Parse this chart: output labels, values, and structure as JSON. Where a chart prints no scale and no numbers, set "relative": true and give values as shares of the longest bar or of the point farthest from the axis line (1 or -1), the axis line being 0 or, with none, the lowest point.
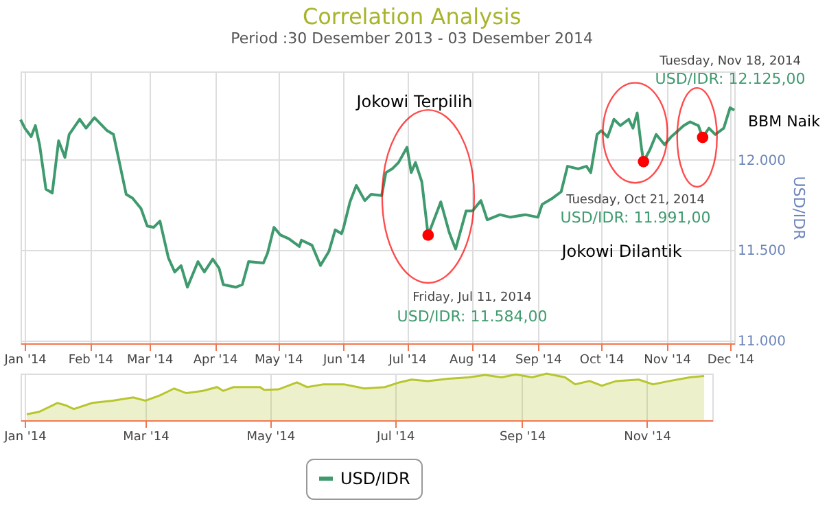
{
  "chart_data": [
    {
      "type": "line",
      "title": "Correlation Analysis",
      "subtitle": "Period :30 Desember 2013 - 03 Desember 2014",
      "ylabel": "USD/IDR",
      "x": [
        "2013-12-30",
        "2014-01-01",
        "2014-01-04",
        "2014-01-06",
        "2014-01-08",
        "2014-01-11",
        "2014-01-14",
        "2014-01-17",
        "2014-01-20",
        "2014-01-22",
        "2014-01-27",
        "2014-01-30",
        "2014-02-03",
        "2014-02-09",
        "2014-02-12",
        "2014-02-18",
        "2014-02-21",
        "2014-02-25",
        "2014-02-28",
        "2014-03-03",
        "2014-03-06",
        "2014-03-10",
        "2014-03-13",
        "2014-03-16",
        "2014-03-19",
        "2014-03-24",
        "2014-03-27",
        "2014-03-31",
        "2014-04-03",
        "2014-04-05",
        "2014-04-11",
        "2014-04-14",
        "2014-04-17",
        "2014-04-24",
        "2014-04-26",
        "2014-04-29",
        "2014-05-02",
        "2014-05-06",
        "2014-05-11",
        "2014-05-12",
        "2014-05-17",
        "2014-05-21",
        "2014-05-25",
        "2014-05-28",
        "2014-05-31",
        "2014-06-01",
        "2014-06-04",
        "2014-06-07",
        "2014-06-11",
        "2014-06-14",
        "2014-06-19",
        "2014-06-21",
        "2014-06-24",
        "2014-06-27",
        "2014-07-01",
        "2014-07-03",
        "2014-07-05",
        "2014-07-08",
        "2014-07-11",
        "2014-07-17",
        "2014-07-21",
        "2014-07-24",
        "2014-07-29",
        "2014-08-01",
        "2014-08-05",
        "2014-08-08",
        "2014-08-14",
        "2014-08-19",
        "2014-08-26",
        "2014-09-01",
        "2014-09-03",
        "2014-09-08",
        "2014-09-12",
        "2014-09-15",
        "2014-09-20",
        "2014-09-24",
        "2014-09-26",
        "2014-09-29",
        "2014-10-01",
        "2014-10-04",
        "2014-10-07",
        "2014-10-10",
        "2014-10-14",
        "2014-10-16",
        "2014-10-18",
        "2014-10-20",
        "2014-10-21",
        "2014-10-24",
        "2014-10-27",
        "2014-10-31",
        "2014-11-03",
        "2014-11-09",
        "2014-11-12",
        "2014-11-16",
        "2014-11-18",
        "2014-11-21",
        "2014-11-24",
        "2014-11-28",
        "2014-12-01",
        "2014-12-03"
      ],
      "series": [
        {
          "name": "USD/IDR",
          "color": "#3f9a6e",
          "values": [
            12223,
            12176,
            12129,
            12190,
            12084,
            11838,
            11817,
            12106,
            12014,
            12141,
            12225,
            12176,
            12234,
            12162,
            12141,
            11810,
            11789,
            11732,
            11634,
            11627,
            11662,
            11458,
            11380,
            11415,
            11296,
            11437,
            11380,
            11451,
            11401,
            11310,
            11296,
            11310,
            11437,
            11430,
            11486,
            11627,
            11585,
            11564,
            11521,
            11556,
            11528,
            11416,
            11493,
            11613,
            11592,
            11627,
            11768,
            11859,
            11775,
            11810,
            11803,
            11930,
            11951,
            11986,
            12070,
            11930,
            11986,
            11880,
            11584,
            11768,
            11599,
            11507,
            11718,
            11718,
            11775,
            11669,
            11697,
            11683,
            11697,
            11683,
            11754,
            11789,
            11824,
            11965,
            11951,
            11965,
            11930,
            12141,
            12162,
            12127,
            12225,
            12190,
            12225,
            12176,
            12260,
            12070,
            11991,
            12056,
            12141,
            12084,
            12127,
            12190,
            12211,
            12190,
            12125,
            12176,
            12141,
            12176,
            12289,
            12275
          ]
        },
        {
          "type": "scatter",
          "color": "#ff0000",
          "x": [
            "2014-07-11",
            "2014-10-21",
            "2014-11-18"
          ],
          "values": [
            11584,
            11991,
            12125
          ]
        }
      ],
      "xlim": [
        "2013-12-30",
        "2014-12-03"
      ],
      "xticks": [
        {
          "value": "2014-01-01",
          "label": "Jan '14"
        },
        {
          "value": "2014-02-01",
          "label": "Feb '14"
        },
        {
          "value": "2014-03-01",
          "label": "Mar '14"
        },
        {
          "value": "2014-04-01",
          "label": "Apr '14"
        },
        {
          "value": "2014-05-01",
          "label": "May '14"
        },
        {
          "value": "2014-06-01",
          "label": "Jun '14"
        },
        {
          "value": "2014-07-01",
          "label": "Jul '14"
        },
        {
          "value": "2014-08-01",
          "label": "Aug '14"
        },
        {
          "value": "2014-09-01",
          "label": "Sep '14"
        },
        {
          "value": "2014-10-01",
          "label": "Oct '14"
        },
        {
          "value": "2014-11-01",
          "label": "Nov '14"
        },
        {
          "value": "2014-12-01",
          "label": "Dec '14"
        }
      ],
      "ylim": [
        10985,
        12490
      ],
      "yticks": [
        {
          "value": 11000,
          "label": "11.000"
        },
        {
          "value": 11500,
          "label": "11.500"
        },
        {
          "value": 12000,
          "label": "12.000"
        }
      ],
      "grid": true,
      "legend": "bottom",
      "annotations": [
        "Jokowi Terpilih",
        "Jokowi Dilantik",
        "BBM Naik",
        "Friday, Jul 11, 2014",
        "USD/IDR: 11.584,00",
        "Tuesday, Oct 21, 2014",
        "USD/IDR: 11.991,00",
        "Tuesday, Nov 18, 2014",
        "USD/IDR: 12.125,00"
      ]
    },
    {
      "type": "area",
      "relative": true,
      "color": "#b8c62e",
      "x": [
        "2014-01-02",
        "2014-01-08",
        "2014-01-17",
        "2014-01-21",
        "2014-01-25",
        "2014-02-03",
        "2014-02-13",
        "2014-02-23",
        "2014-03-01",
        "2014-03-08",
        "2014-03-15",
        "2014-03-21",
        "2014-03-29",
        "2014-04-05",
        "2014-04-08",
        "2014-04-13",
        "2014-04-26",
        "2014-04-28",
        "2014-05-05",
        "2014-05-14",
        "2014-05-19",
        "2014-05-27",
        "2014-06-06",
        "2014-06-16",
        "2014-06-26",
        "2014-07-03",
        "2014-07-09",
        "2014-07-17",
        "2014-07-27",
        "2014-08-06",
        "2014-08-14",
        "2014-08-22",
        "2014-08-29",
        "2014-09-06",
        "2014-09-13",
        "2014-09-22",
        "2014-09-27",
        "2014-10-04",
        "2014-10-10",
        "2014-10-17",
        "2014-10-28",
        "2014-11-04",
        "2014-11-12",
        "2014-11-22",
        "2014-11-29"
      ],
      "values": [
        0.13,
        0.18,
        0.37,
        0.32,
        0.24,
        0.37,
        0.42,
        0.49,
        0.42,
        0.53,
        0.68,
        0.58,
        0.63,
        0.71,
        0.63,
        0.71,
        0.71,
        0.65,
        0.66,
        0.81,
        0.71,
        0.77,
        0.77,
        0.68,
        0.71,
        0.81,
        0.87,
        0.84,
        0.89,
        0.92,
        0.97,
        0.92,
        0.98,
        0.92,
        1.0,
        0.92,
        0.77,
        0.84,
        0.74,
        0.84,
        0.87,
        0.77,
        0.84,
        0.92,
        0.95
      ],
      "xlim": [
        "2013-12-30",
        "2014-12-03"
      ],
      "xticks": [
        {
          "value": "2014-01-01",
          "label": "Jan '14"
        },
        {
          "value": "2014-03-01",
          "label": "Mar '14"
        },
        {
          "value": "2014-05-01",
          "label": "May '14"
        },
        {
          "value": "2014-07-01",
          "label": "Jul '14"
        },
        {
          "value": "2014-09-01",
          "label": "Sep '14"
        },
        {
          "value": "2014-11-01",
          "label": "Nov '14"
        }
      ],
      "grid": "x",
      "tick_labels": "x"
    }
  ]
}
